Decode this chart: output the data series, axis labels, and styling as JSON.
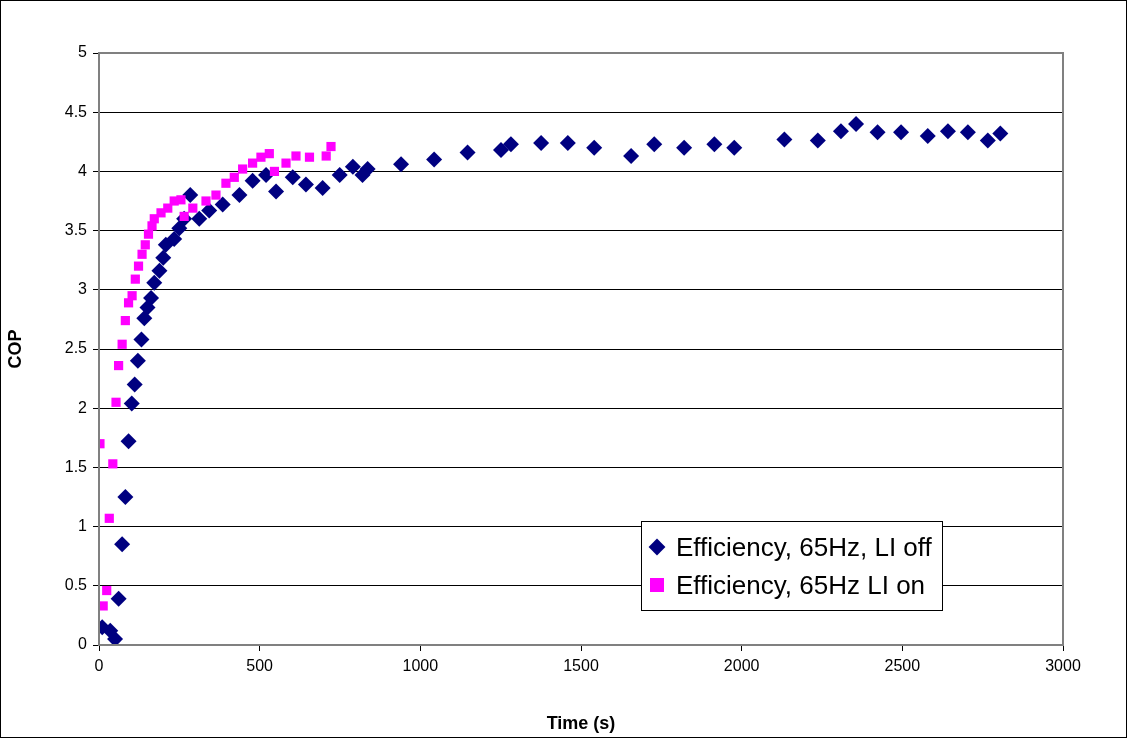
{
  "chart_data": {
    "type": "scatter",
    "xlabel": "Time (s)",
    "ylabel": "COP",
    "xlim": [
      0,
      3000
    ],
    "xticks": [
      0,
      500,
      1000,
      1500,
      2000,
      2500,
      3000
    ],
    "ylim": [
      0,
      5
    ],
    "yticks": [
      0,
      0.5,
      1,
      1.5,
      2,
      2.5,
      3,
      3.5,
      4,
      4.5,
      5
    ],
    "grid": "y",
    "legend": "bottom right",
    "series": [
      {
        "name": "Efficiency, 65Hz, LI off",
        "color": "#000080",
        "marker": "diamond",
        "x": [
          10,
          35,
          50,
          61,
          72,
          82,
          92,
          102,
          111,
          121,
          132,
          141,
          151,
          162,
          172,
          188,
          200,
          208,
          234,
          250,
          265,
          284,
          312,
          343,
          385,
          437,
          478,
          520,
          551,
          603,
          644,
          696,
          749,
          790,
          820,
          836,
          940,
          1043,
          1147,
          1251,
          1282,
          1376,
          1459,
          1541,
          1656,
          1728,
          1821,
          1915,
          1977,
          2133,
          2237,
          2309,
          2356,
          2423,
          2496,
          2579,
          2642,
          2704,
          2766,
          2805
        ],
        "values": [
          0.15,
          0.12,
          0.05,
          0.39,
          0.85,
          1.25,
          1.72,
          2.04,
          2.2,
          2.4,
          2.58,
          2.76,
          2.85,
          2.93,
          3.06,
          3.16,
          3.27,
          3.38,
          3.43,
          3.52,
          3.6,
          3.8,
          3.6,
          3.67,
          3.72,
          3.8,
          3.92,
          3.97,
          3.83,
          3.95,
          3.89,
          3.86,
          3.97,
          4.04,
          3.97,
          4.02,
          4.06,
          4.1,
          4.16,
          4.18,
          4.23,
          4.24,
          4.24,
          4.2,
          4.13,
          4.23,
          4.2,
          4.23,
          4.2,
          4.27,
          4.26,
          4.34,
          4.4,
          4.33,
          4.33,
          4.3,
          4.34,
          4.33,
          4.26,
          4.32
        ]
      },
      {
        "name": "Efficiency, 65Hz LI on",
        "color": "#ff00ff",
        "marker": "square",
        "x": [
          3,
          13,
          24,
          32,
          43,
          53,
          61,
          72,
          82,
          92,
          103,
          113,
          123,
          134,
          144,
          154,
          165,
          172,
          193,
          214,
          234,
          255,
          265,
          292,
          333,
          364,
          395,
          421,
          447,
          478,
          504,
          530,
          546,
          582,
          613,
          655,
          707,
          722
        ],
        "values": [
          1.7,
          0.33,
          0.46,
          1.07,
          1.53,
          2.05,
          2.36,
          2.54,
          2.74,
          2.89,
          2.95,
          3.09,
          3.2,
          3.3,
          3.38,
          3.47,
          3.54,
          3.6,
          3.65,
          3.69,
          3.75,
          3.76,
          3.62,
          3.69,
          3.75,
          3.8,
          3.9,
          3.95,
          4.02,
          4.07,
          4.12,
          4.15,
          4.0,
          4.07,
          4.13,
          4.12,
          4.13,
          4.21
        ]
      }
    ]
  }
}
